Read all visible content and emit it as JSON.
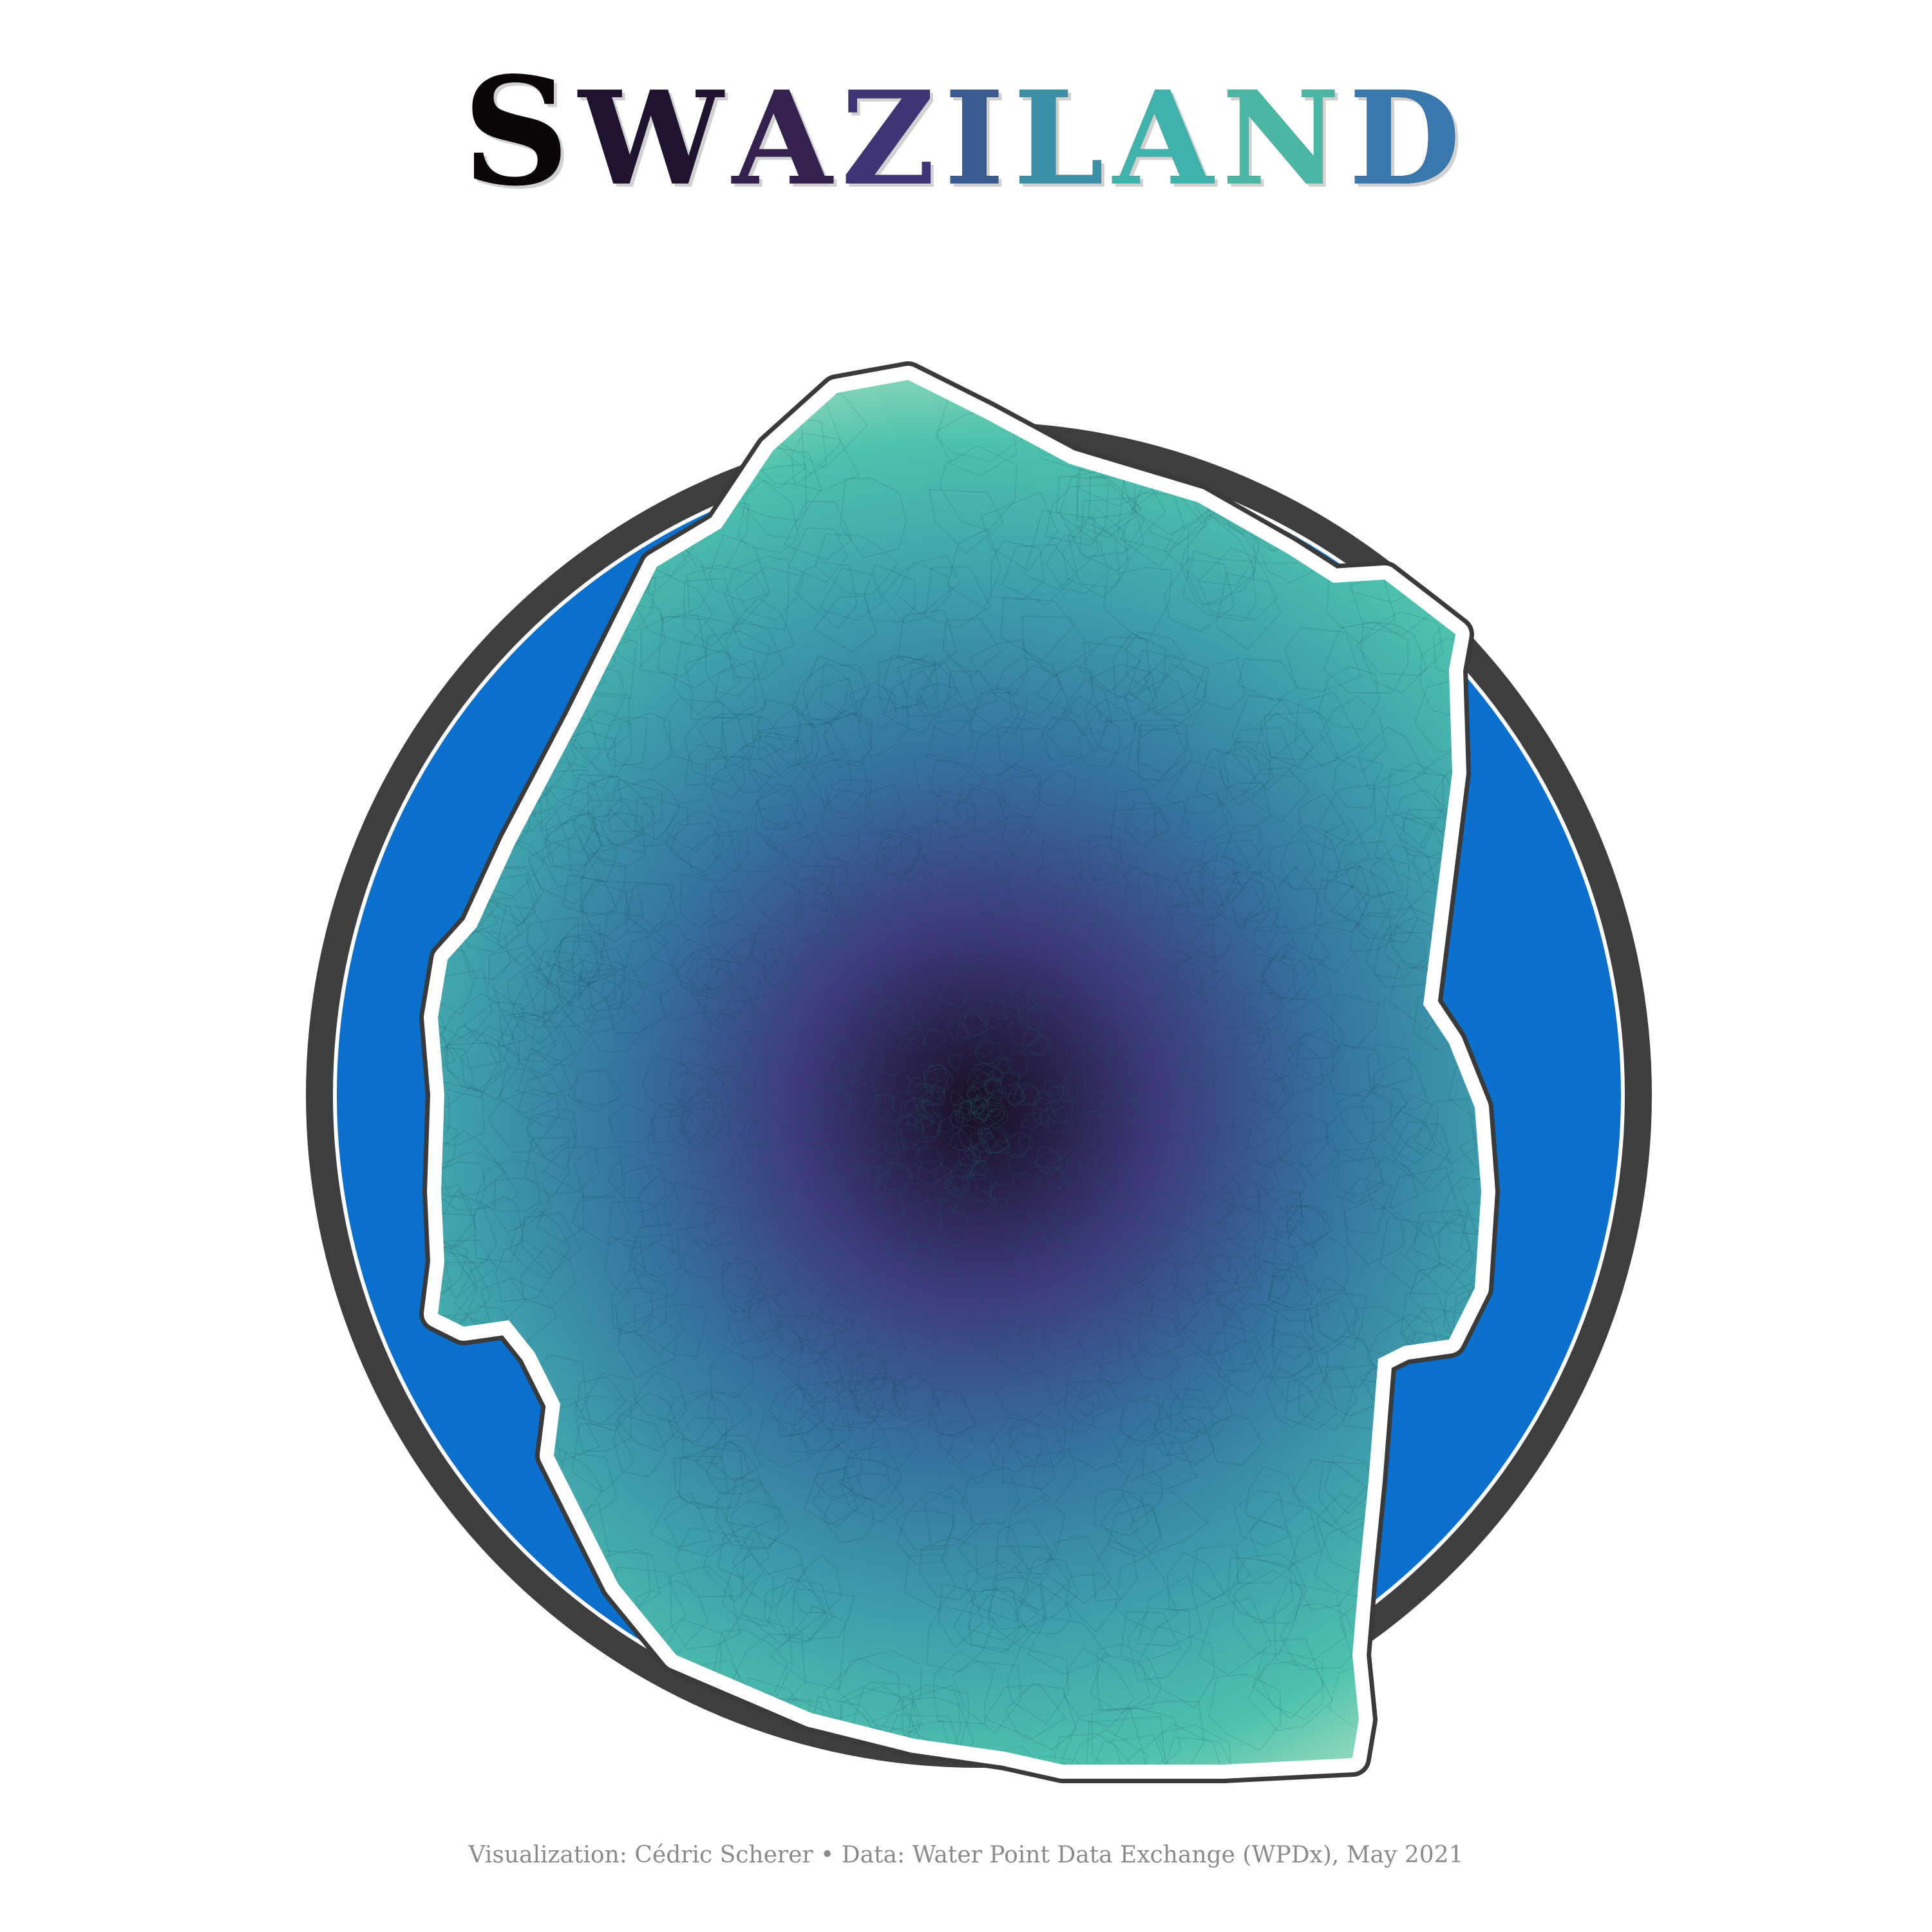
{
  "title": {
    "text": "Swaziland",
    "letters": [
      {
        "ch": "S",
        "color": "#0b0508",
        "big": true
      },
      {
        "ch": "W",
        "color": "#1f1330",
        "big": false
      },
      {
        "ch": "A",
        "color": "#35214f",
        "big": false
      },
      {
        "ch": "Z",
        "color": "#3f3474",
        "big": false
      },
      {
        "ch": "I",
        "color": "#3a5a92",
        "big": false
      },
      {
        "ch": "L",
        "color": "#3b8fa6",
        "big": false
      },
      {
        "ch": "A",
        "color": "#3fb3ab",
        "big": false
      },
      {
        "ch": "N",
        "color": "#4ab7a4",
        "big": false
      },
      {
        "ch": "D",
        "color": "#3a77ad",
        "big": false
      }
    ]
  },
  "map": {
    "background_circle_color": "#0a6fcd",
    "circle_outline_color": "#3e3e3e",
    "country_outline_color": "#3a3a3a",
    "country_halo_color": "#ffffff",
    "gradient": [
      "#190e23",
      "#3e3a7e",
      "#35729f",
      "#3e9fac",
      "#4fc2ad",
      "#a5e0c0",
      "#d9f2e2"
    ],
    "cell_line_color": "#1f4f63"
  },
  "caption": "Visualization: Cédric Scherer • Data: Water Point Data Exchange (WPDx), May 2021"
}
